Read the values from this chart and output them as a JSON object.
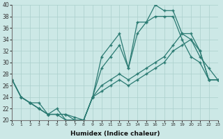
{
  "xlabel": "Humidex (Indice chaleur)",
  "background_color": "#cce8e6",
  "line_color": "#2a7a72",
  "xlim": [
    0,
    23
  ],
  "ylim": [
    20,
    40
  ],
  "yticks": [
    20,
    22,
    24,
    26,
    28,
    30,
    32,
    34,
    36,
    38,
    40
  ],
  "xticks": [
    0,
    1,
    2,
    3,
    4,
    5,
    6,
    7,
    8,
    9,
    10,
    11,
    12,
    13,
    14,
    15,
    16,
    17,
    18,
    19,
    20,
    21,
    22,
    23
  ],
  "s1": [
    27,
    24,
    23,
    23,
    21,
    22,
    20,
    20,
    20,
    24,
    31,
    33,
    35,
    29,
    37,
    37,
    40,
    39,
    39,
    35,
    34,
    31,
    29,
    27
  ],
  "s2": [
    27,
    24,
    23,
    22,
    21,
    21,
    21,
    20.5,
    20,
    24,
    29,
    31,
    33,
    29,
    35,
    37,
    38,
    38,
    38,
    34,
    31,
    30,
    27,
    27
  ],
  "s3": [
    27,
    24,
    23,
    22,
    21,
    21,
    21,
    20,
    20,
    24,
    26,
    27,
    28,
    27,
    28,
    29,
    30,
    31,
    33,
    35,
    35,
    32,
    27,
    27
  ],
  "s4": [
    27,
    24,
    23,
    22,
    21,
    21,
    20,
    20,
    20,
    24,
    25,
    26,
    27,
    26,
    27,
    28,
    29,
    30,
    32,
    33,
    34,
    32,
    27,
    27
  ]
}
